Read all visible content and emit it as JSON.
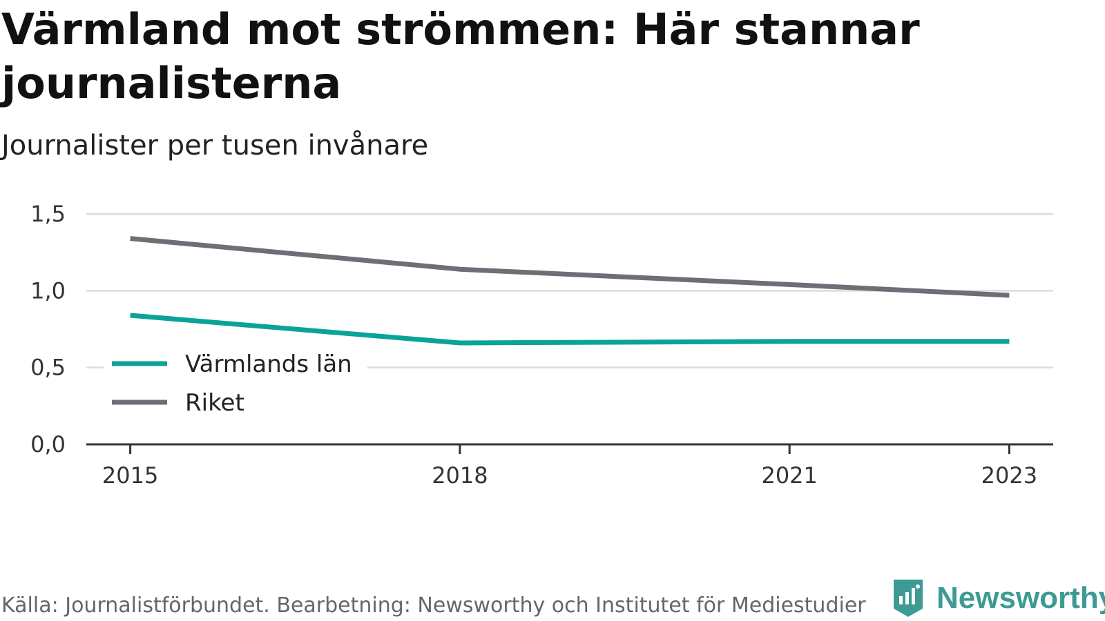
{
  "header": {
    "title": "Värmland mot strömmen: Här stannar journalisterna",
    "subtitle": "Journalister per tusen invånare"
  },
  "footer": {
    "source": "Källa: Journalistförbundet. Bearbetning: Newsworthy och Institutet för Mediestudier",
    "brand": "Newsworthy",
    "brand_icon": "newsworthy-logo-icon"
  },
  "colors": {
    "varmland": "#0aa39a",
    "riket": "#6f6e76",
    "grid": "#dcdcdc",
    "axis": "#333333",
    "brand": "#3d9b93"
  },
  "chart_data": {
    "type": "line",
    "x": [
      2015,
      2018,
      2021,
      2023
    ],
    "x_tick_labels": [
      "2015",
      "2018",
      "2021",
      "2023"
    ],
    "xlim": [
      2014.6,
      2023.4
    ],
    "ylim": [
      0,
      1.5
    ],
    "y_ticks": [
      0,
      0.5,
      1.0,
      1.5
    ],
    "y_tick_labels": [
      "0,0",
      "0,5",
      "1,0",
      "1,5"
    ],
    "grid": true,
    "legend_position": "bottom-left",
    "series": [
      {
        "name": "Värmlands län",
        "values": [
          0.84,
          0.66,
          0.67,
          0.67
        ]
      },
      {
        "name": "Riket",
        "values": [
          1.34,
          1.14,
          1.04,
          0.97
        ]
      }
    ]
  }
}
